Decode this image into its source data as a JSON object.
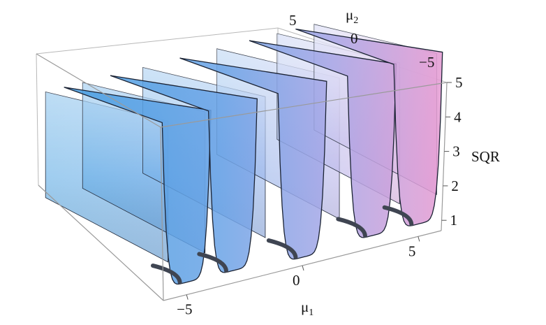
{
  "chart_data": {
    "type": "surface3d",
    "title": "",
    "x_axis": {
      "label": "μ1",
      "label_base": "μ",
      "label_sub": "1",
      "ticks": [
        -5,
        0,
        5
      ],
      "range": [
        -6,
        6
      ]
    },
    "y_axis": {
      "label": "μ2",
      "label_base": "μ",
      "label_sub": "2",
      "ticks": [
        5,
        0,
        -5
      ],
      "range": [
        -6,
        6
      ]
    },
    "z_axis": {
      "label": "SQR",
      "ticks": [
        1,
        2,
        3,
        4,
        5
      ],
      "range": [
        0.7,
        5
      ]
    },
    "colors": {
      "low_mu1": "#3d9be0",
      "mid": "#8fa6e6",
      "high_mu1": "#e49ad2",
      "edge": "#1a2233",
      "dark_band": "#3f4552"
    },
    "ridges_at_mu1": [
      -5.8,
      -4.2,
      -1.6,
      1.6,
      4.2,
      5.8
    ],
    "valleys": [
      {
        "mu1_center": -5.0,
        "min_sqr": 1.0
      },
      {
        "mu1_center": -3.0,
        "min_sqr": 1.0
      },
      {
        "mu1_center": 0.0,
        "min_sqr": 0.9
      },
      {
        "mu1_center": 3.0,
        "min_sqr": 1.0
      },
      {
        "mu1_center": 5.0,
        "min_sqr": 1.0
      }
    ]
  }
}
